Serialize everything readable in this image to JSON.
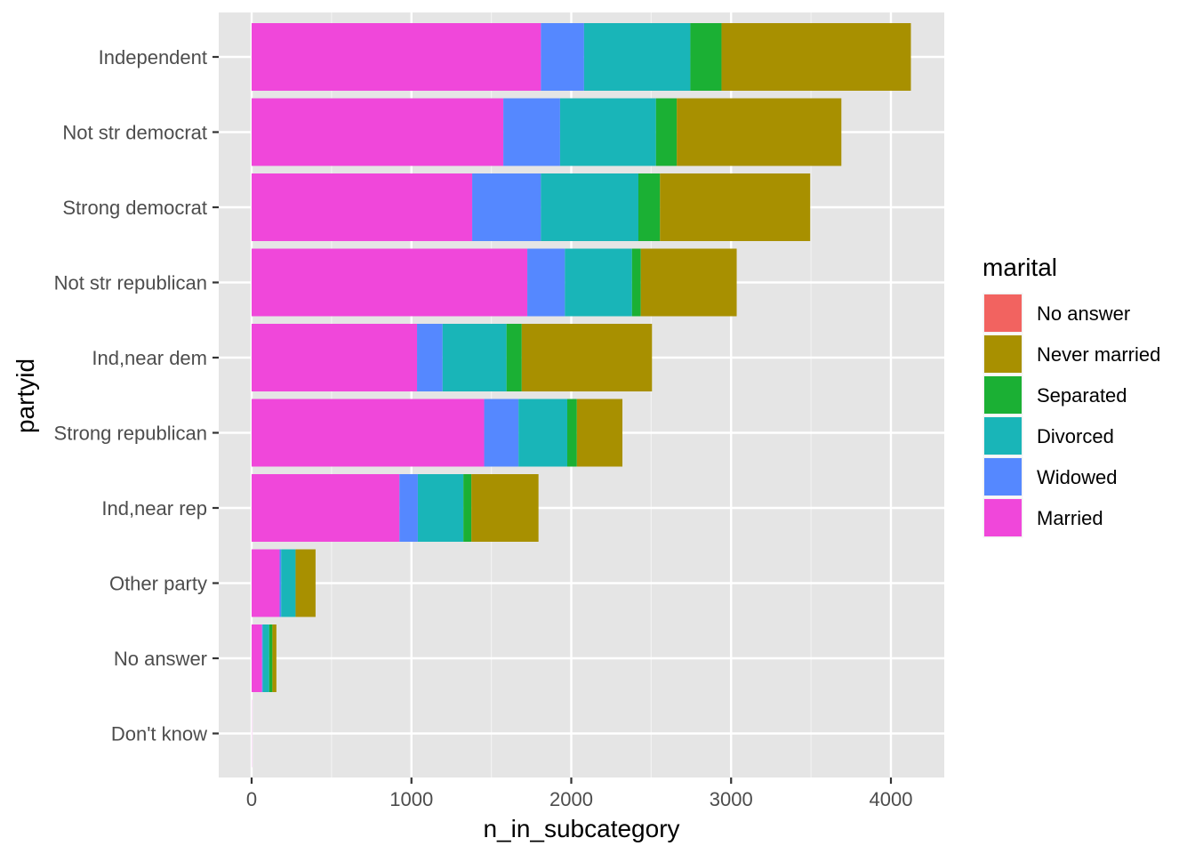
{
  "chart_data": {
    "type": "bar",
    "orientation": "horizontal",
    "stacked": true,
    "title": "",
    "xlabel": "n_in_subcategory",
    "ylabel": "partyid",
    "xlim": [
      -210,
      4330
    ],
    "xticks": [
      0,
      1000,
      2000,
      3000,
      4000
    ],
    "xtick_labels": [
      "0",
      "1000",
      "2000",
      "3000",
      "4000"
    ],
    "grid": true,
    "legend_position": "right",
    "legend_title": "marital",
    "categories": [
      "Independent",
      "Not str democrat",
      "Strong democrat",
      "Not str republican",
      "Ind,near dem",
      "Strong republican",
      "Ind,near rep",
      "Other party",
      "No answer",
      "Don't know"
    ],
    "series": [
      {
        "name": "Married",
        "color": "#F047DA",
        "values": [
          1810,
          1575,
          1380,
          1725,
          1035,
          1455,
          925,
          175,
          65,
          1
        ]
      },
      {
        "name": "Widowed",
        "color": "#5588FF",
        "values": [
          270,
          355,
          430,
          235,
          160,
          215,
          115,
          10,
          5,
          0
        ]
      },
      {
        "name": "Divorced",
        "color": "#19B5B8",
        "values": [
          665,
          600,
          610,
          420,
          400,
          305,
          285,
          90,
          40,
          0
        ]
      },
      {
        "name": "Separated",
        "color": "#1BB034",
        "values": [
          195,
          130,
          135,
          55,
          95,
          60,
          50,
          0,
          20,
          0
        ]
      },
      {
        "name": "Never married",
        "color": "#A89000",
        "values": [
          1185,
          1030,
          940,
          600,
          815,
          285,
          420,
          125,
          25,
          0
        ]
      },
      {
        "name": "No answer",
        "color": "#F26360",
        "values": [
          0,
          0,
          0,
          0,
          0,
          0,
          0,
          0,
          0,
          0
        ]
      }
    ],
    "legend_order": [
      "No answer",
      "Never married",
      "Separated",
      "Divorced",
      "Widowed",
      "Married"
    ]
  },
  "colors": {
    "panel_background": "#E5E5E5",
    "grid_major": "#FFFFFF",
    "axis_text": "#4D4D4D",
    "title_text": "#000000"
  }
}
